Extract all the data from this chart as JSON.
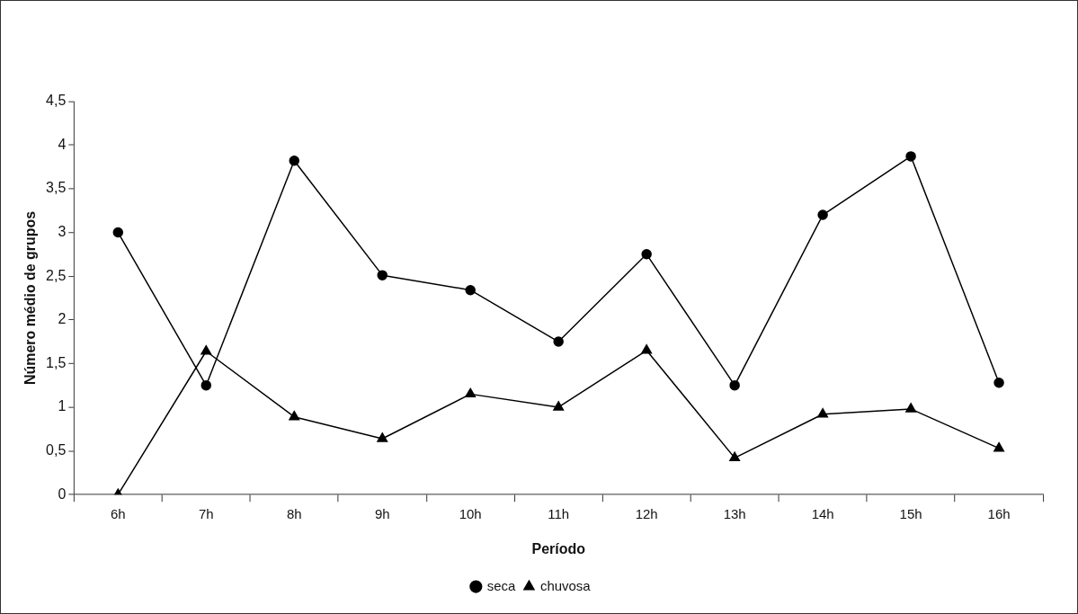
{
  "chart_data": {
    "type": "line",
    "xlabel": "Período",
    "ylabel": "Número médio de grupos",
    "categories": [
      "6h",
      "7h",
      "8h",
      "9h",
      "10h",
      "11h",
      "12h",
      "13h",
      "14h",
      "15h",
      "16h"
    ],
    "series": [
      {
        "name": "seca",
        "color": "#000000",
        "marker": "circle",
        "values": [
          3.0,
          1.25,
          3.82,
          2.51,
          2.34,
          1.75,
          2.75,
          1.25,
          3.2,
          3.87,
          1.28
        ]
      },
      {
        "name": "chuvosa",
        "color": "#000000",
        "marker": "triangle",
        "values": [
          0,
          1.64,
          0.89,
          0.64,
          1.15,
          1.0,
          1.65,
          0.42,
          0.92,
          0.98,
          0.53
        ]
      }
    ],
    "ylim": [
      0,
      4.5
    ],
    "yticks": [
      0,
      {
        "value": 0.5,
        "label": "0,5"
      },
      1,
      {
        "value": 1.5,
        "label": "1,5"
      },
      2,
      {
        "value": 2.5,
        "label": "2,5"
      },
      3,
      {
        "value": 3.5,
        "label": "3,5"
      },
      4,
      {
        "value": 4.5,
        "label": "4,5"
      }
    ],
    "grid": false,
    "legend": "bottom",
    "line_style": "solid"
  }
}
